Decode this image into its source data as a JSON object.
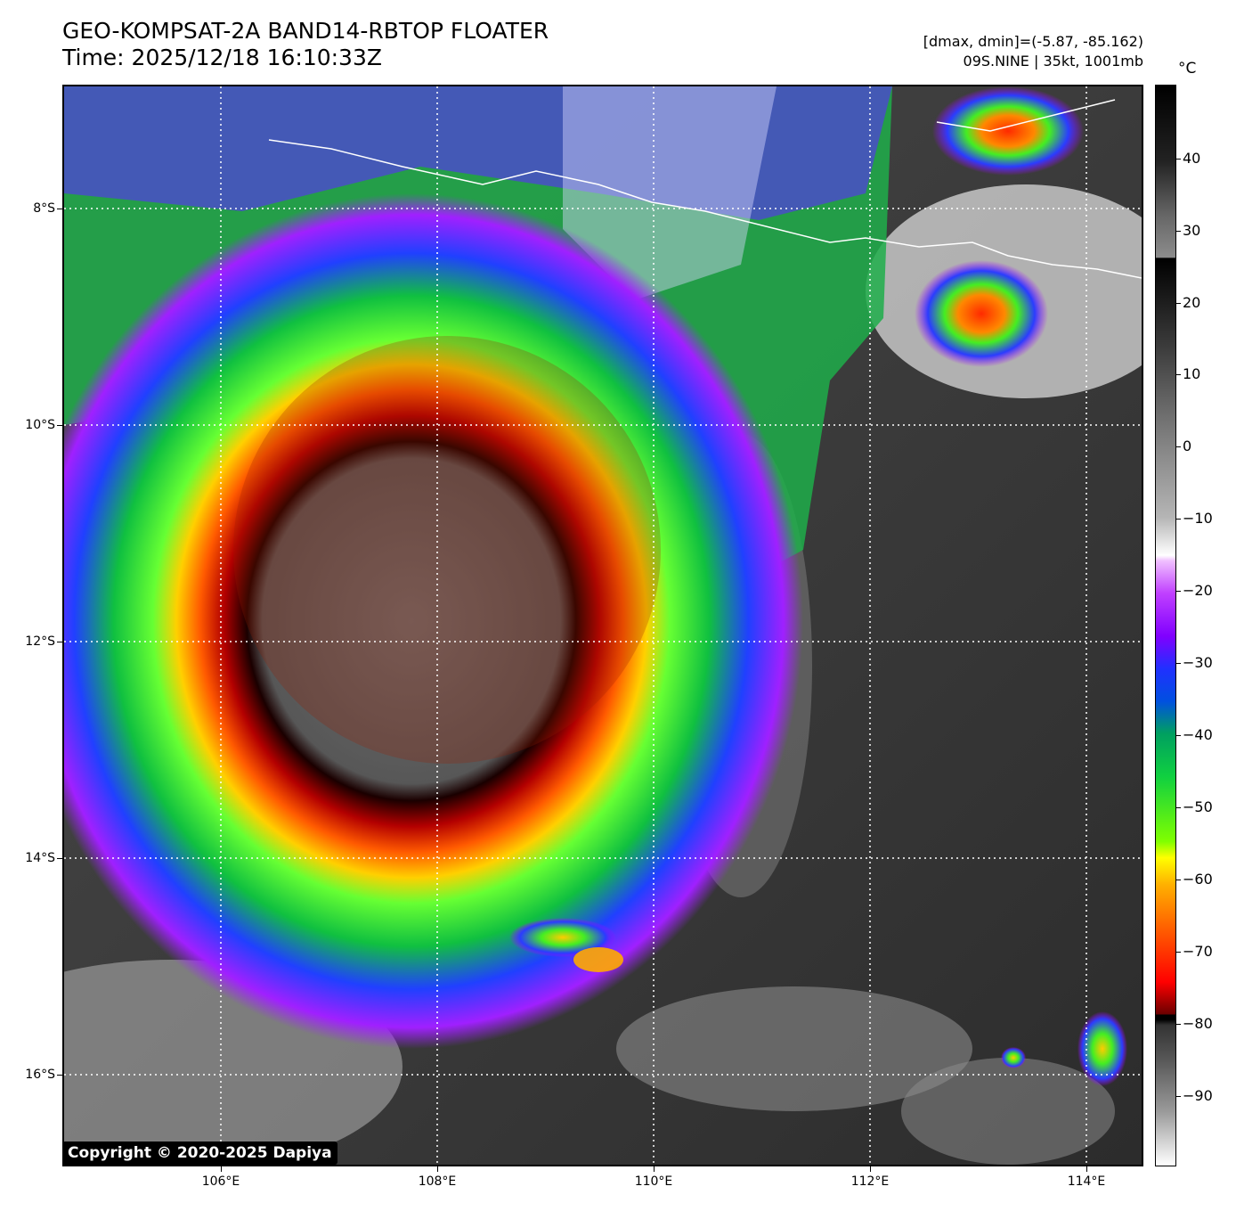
{
  "header": {
    "title_line1": "GEO-KOMPSAT-2A BAND14-RBTOP FLOATER",
    "title_line2": "Time: 2025/12/18 16:10:33Z",
    "info_line1": "[dmax, dmin]=(-5.87, -85.162)",
    "info_line2": "09S.NINE | 35kt, 1001mb"
  },
  "map": {
    "lat_labels": [
      "8°S",
      "10°S",
      "12°S",
      "14°S",
      "16°S"
    ],
    "lon_labels": [
      "106°E",
      "108°E",
      "110°E",
      "112°E",
      "114°E"
    ],
    "lat_range": [
      -6.85,
      -16.85
    ],
    "lon_range": [
      104.55,
      114.55
    ],
    "grid": "dotted",
    "coastline_color": "#ffffff"
  },
  "colorbar": {
    "unit": "°C",
    "labels": [
      "40",
      "30",
      "20",
      "10",
      "0",
      "−10",
      "−20",
      "−30",
      "−40",
      "−50",
      "−60",
      "−70",
      "−80",
      "−90"
    ],
    "range": [
      -100,
      50
    ]
  },
  "copyright": "Copyright © 2020-2025 Dapiya"
}
